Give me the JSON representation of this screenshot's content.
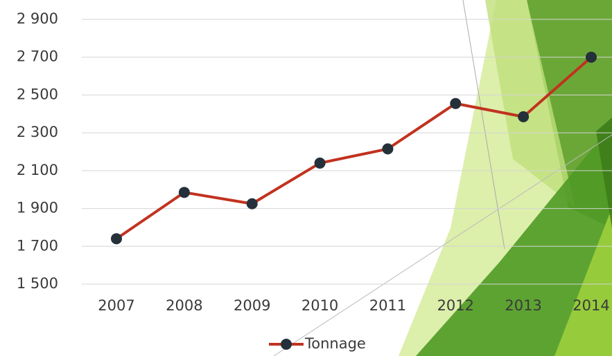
{
  "chart_data": {
    "type": "line",
    "categories": [
      "2007",
      "2008",
      "2009",
      "2010",
      "2011",
      "2012",
      "2013",
      "2014"
    ],
    "series": [
      {
        "name": "Tonnage",
        "color": "#c1321f",
        "marker_color": "#24313a",
        "values": [
          1740,
          1985,
          1925,
          2140,
          2215,
          2455,
          2385,
          2700
        ]
      }
    ],
    "ylim": [
      1500,
      2900
    ],
    "yticks": [
      {
        "value": 1500,
        "label": "1 500"
      },
      {
        "value": 1700,
        "label": "1 700"
      },
      {
        "value": 1900,
        "label": "1 900"
      },
      {
        "value": 2100,
        "label": "2 100"
      },
      {
        "value": 2300,
        "label": "2 300"
      },
      {
        "value": 2500,
        "label": "2 500"
      },
      {
        "value": 2700,
        "label": "2 700"
      },
      {
        "value": 2900,
        "label": "2 900"
      }
    ],
    "grid": true,
    "legend": "bottom"
  }
}
